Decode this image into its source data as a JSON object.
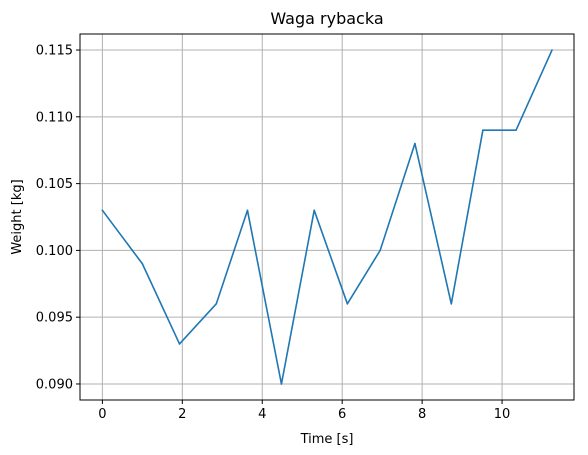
{
  "chart_data": {
    "type": "line",
    "title": "Waga rybacka",
    "xlabel": "Time [s]",
    "ylabel": "Weight [kg]",
    "xlim": [
      -0.56,
      11.8
    ],
    "ylim": [
      0.0888,
      0.1162
    ],
    "grid": true,
    "x_ticks": [
      0,
      2,
      4,
      6,
      8,
      10
    ],
    "x_tick_labels": [
      "0",
      "2",
      "4",
      "6",
      "8",
      "10"
    ],
    "y_ticks": [
      0.09,
      0.095,
      0.1,
      0.105,
      0.11,
      0.115
    ],
    "y_tick_labels": [
      "0.090",
      "0.095",
      "0.100",
      "0.105",
      "0.110",
      "0.115"
    ],
    "series": [
      {
        "color": "#1f77b4",
        "x": [
          0.0,
          1.0,
          1.93,
          2.85,
          3.63,
          4.48,
          5.3,
          6.13,
          6.95,
          7.82,
          8.73,
          9.52,
          10.35,
          11.25
        ],
        "y": [
          0.103,
          0.099,
          0.093,
          0.096,
          0.103,
          0.09,
          0.103,
          0.096,
          0.1,
          0.108,
          0.096,
          0.109,
          0.109,
          0.115
        ]
      }
    ]
  }
}
